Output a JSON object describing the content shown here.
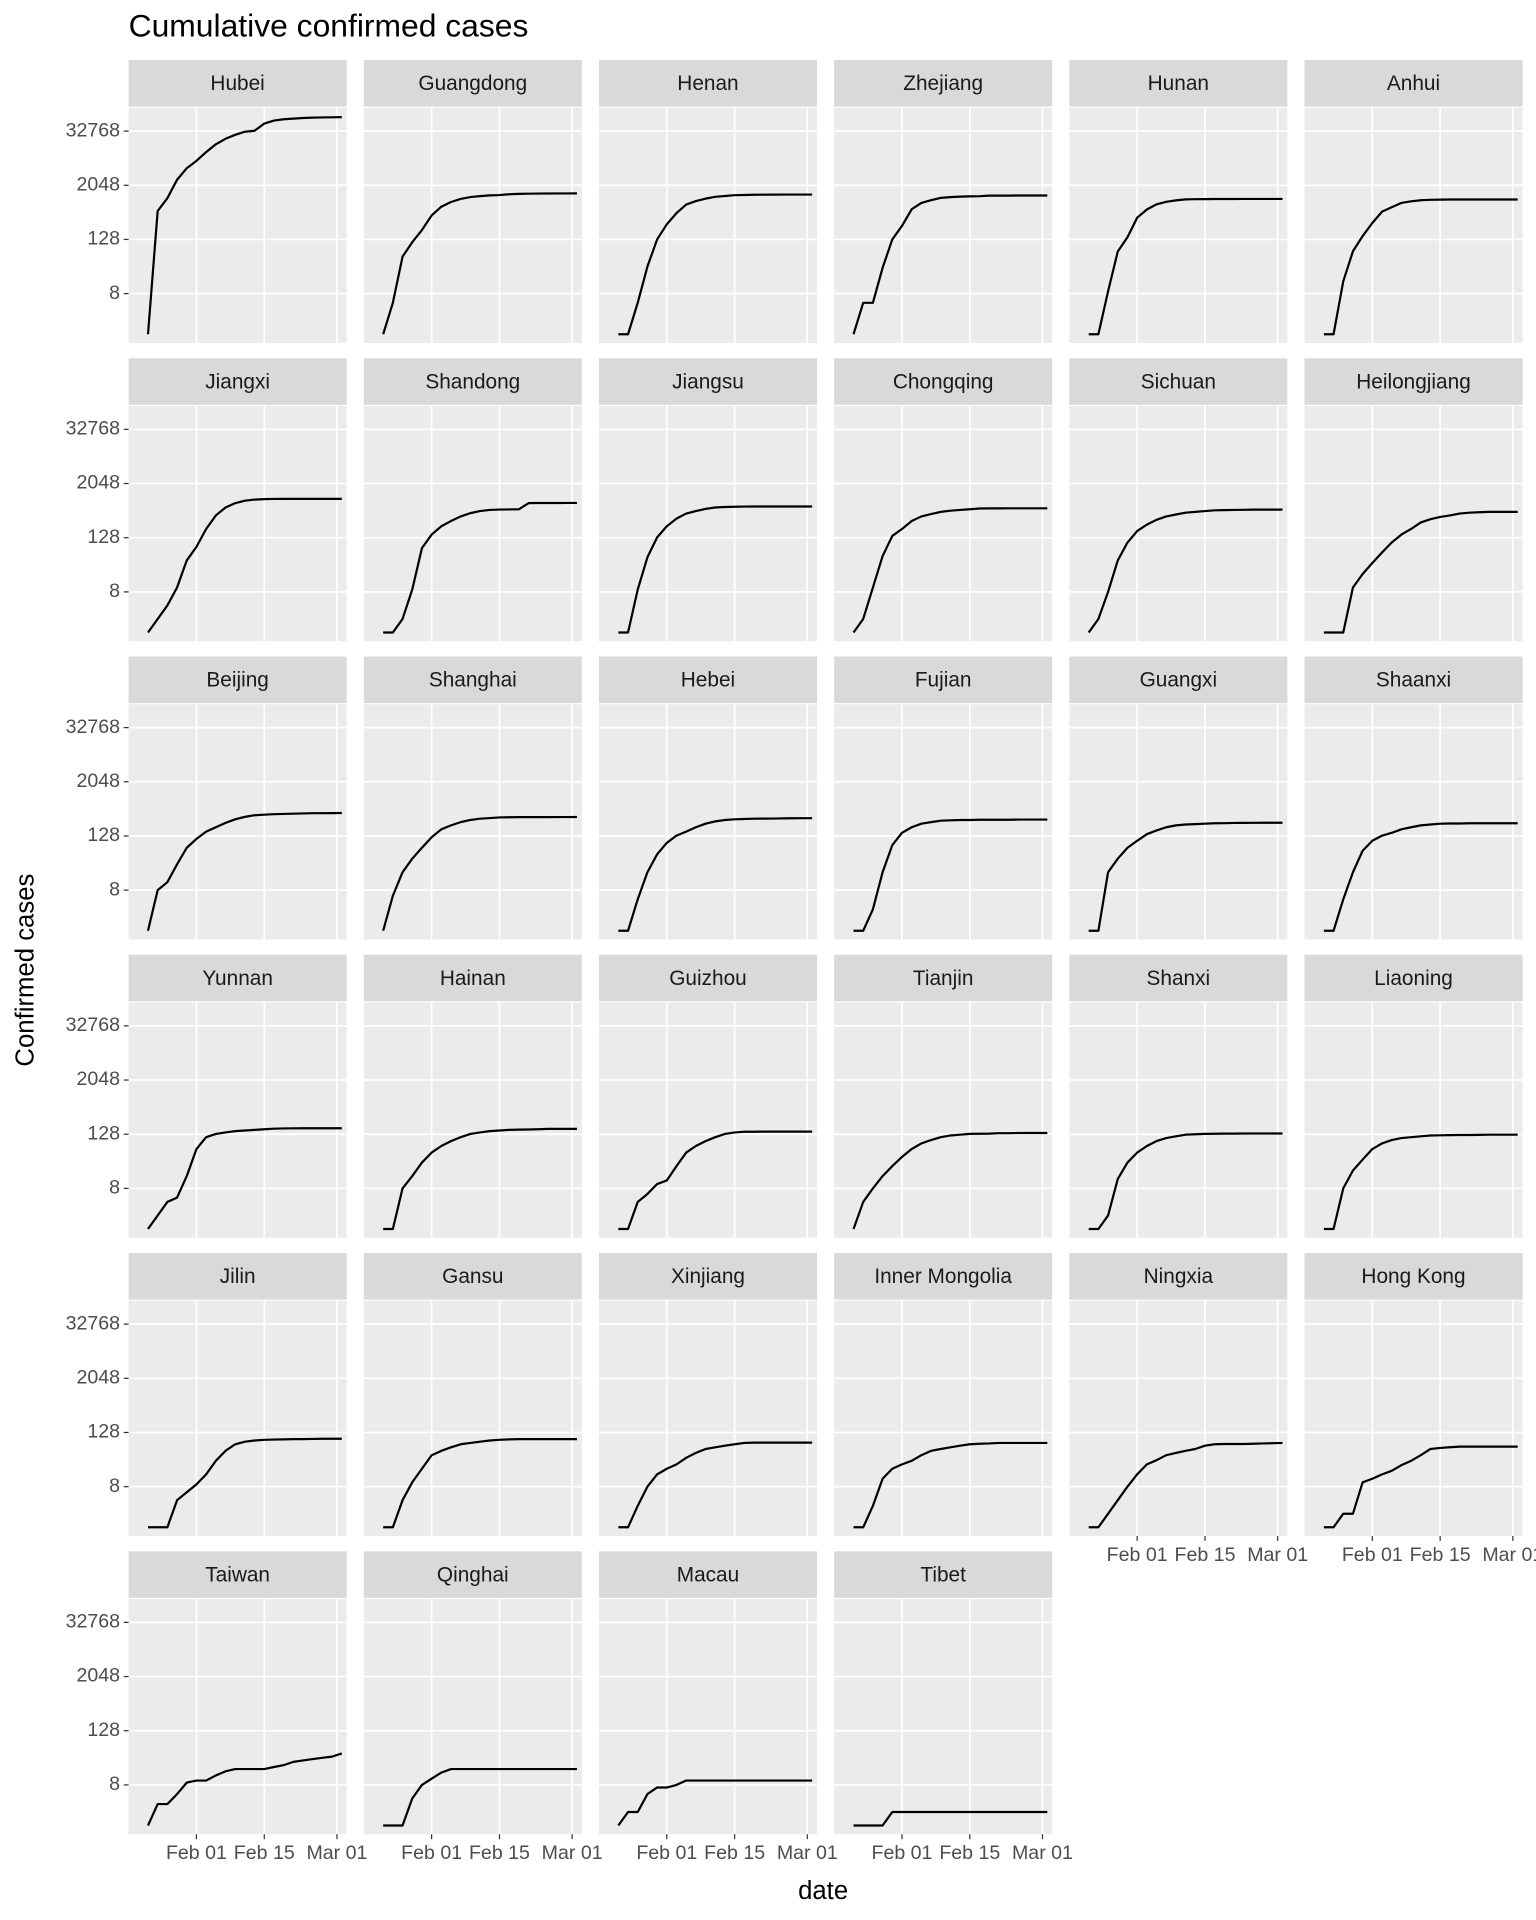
{
  "chart_data": {
    "type": "line",
    "title": "Cumulative confirmed cases",
    "x_label": "date",
    "y_label": "Confirmed cases",
    "y_scale": "log2",
    "grid": true,
    "color": "#000000",
    "xlim": [
      18,
      63
    ],
    "xticks": [
      {
        "value": 32,
        "label": "Feb 01"
      },
      {
        "value": 46,
        "label": "Feb 15"
      },
      {
        "value": 61,
        "label": "Mar 01"
      }
    ],
    "ylim": [
      0.64,
      108000
    ],
    "yticks": [
      8,
      128,
      2048,
      32768
    ],
    "x": [
      22,
      24,
      26,
      28,
      30,
      32,
      34,
      36,
      38,
      40,
      42,
      44,
      46,
      48,
      50,
      52,
      54,
      56,
      58,
      60,
      62
    ],
    "series": [
      {
        "name": "Hubei",
        "values": [
          1,
          549,
          1058,
          2714,
          4903,
          7153,
          11177,
          16678,
          22112,
          27100,
          31728,
          33366,
          48206,
          56249,
          59989,
          62031,
          64084,
          65187,
          65914,
          66337,
          66907
        ]
      },
      {
        "name": "Guangdong",
        "values": [
          1,
          5,
          53,
          111,
          207,
          436,
          683,
          870,
          1018,
          1120,
          1177,
          1219,
          1241,
          1294,
          1316,
          1332,
          1339,
          1345,
          1347,
          1349,
          1350
        ]
      },
      {
        "name": "Henan",
        "values": [
          1,
          1,
          5,
          32,
          128,
          278,
          493,
          764,
          914,
          1033,
          1135,
          1184,
          1231,
          1246,
          1262,
          1265,
          1270,
          1271,
          1272,
          1272,
          1272
        ]
      },
      {
        "name": "Zhejiang",
        "values": [
          1,
          5,
          5,
          30,
          128,
          256,
          600,
          829,
          954,
          1075,
          1117,
          1145,
          1162,
          1171,
          1205,
          1205,
          1206,
          1213,
          1215,
          1215,
          1215
        ]
      },
      {
        "name": "Hunan",
        "values": [
          1,
          1,
          9,
          69,
          143,
          389,
          593,
          773,
          879,
          946,
          996,
          1004,
          1006,
          1016,
          1016,
          1016,
          1017,
          1018,
          1018,
          1018,
          1018
        ]
      },
      {
        "name": "Anhui",
        "values": [
          1,
          1,
          15,
          70,
          152,
          297,
          530,
          665,
          830,
          900,
          950,
          973,
          982,
          987,
          989,
          989,
          990,
          990,
          990,
          990,
          990
        ]
      },
      {
        "name": "Jiangxi",
        "values": [
          1,
          2,
          4,
          10,
          40,
          80,
          200,
          400,
          600,
          750,
          850,
          900,
          920,
          930,
          934,
          935,
          935,
          935,
          935,
          935,
          935
        ]
      },
      {
        "name": "Shandong",
        "values": [
          1,
          1,
          2,
          9,
          75,
          150,
          230,
          300,
          380,
          450,
          500,
          530,
          540,
          544,
          548,
          750,
          755,
          756,
          756,
          758,
          758
        ]
      },
      {
        "name": "Jiangsu",
        "values": [
          1,
          1,
          9,
          47,
          130,
          230,
          340,
          440,
          500,
          560,
          600,
          615,
          625,
          630,
          631,
          631,
          631,
          631,
          631,
          631,
          631
        ]
      },
      {
        "name": "Chongqing",
        "values": [
          1,
          2,
          10,
          50,
          140,
          200,
          300,
          380,
          430,
          480,
          510,
          530,
          550,
          570,
          573,
          575,
          576,
          576,
          576,
          576,
          576
        ]
      },
      {
        "name": "Sichuan",
        "values": [
          1,
          2,
          8,
          40,
          100,
          180,
          250,
          320,
          380,
          420,
          460,
          480,
          500,
          520,
          525,
          530,
          534,
          538,
          538,
          539,
          539
        ]
      },
      {
        "name": "Heilongjiang",
        "values": [
          1,
          1,
          1,
          10,
          20,
          35,
          60,
          100,
          150,
          200,
          280,
          330,
          370,
          400,
          440,
          460,
          470,
          480,
          480,
          480,
          480
        ]
      },
      {
        "name": "Beijing",
        "values": [
          1,
          8,
          12,
          30,
          70,
          110,
          160,
          200,
          250,
          300,
          340,
          370,
          380,
          390,
          395,
          400,
          405,
          410,
          410,
          411,
          414
        ]
      },
      {
        "name": "Shanghai",
        "values": [
          1,
          6,
          20,
          40,
          70,
          120,
          180,
          220,
          260,
          290,
          310,
          320,
          330,
          333,
          335,
          335,
          335,
          336,
          337,
          337,
          338
        ]
      },
      {
        "name": "Hebei",
        "values": [
          1,
          1,
          5,
          20,
          50,
          90,
          130,
          160,
          200,
          240,
          270,
          290,
          300,
          305,
          310,
          311,
          312,
          315,
          317,
          318,
          318
        ]
      },
      {
        "name": "Fujian",
        "values": [
          1,
          1,
          3,
          20,
          80,
          150,
          200,
          240,
          260,
          280,
          285,
          290,
          290,
          293,
          293,
          294,
          294,
          296,
          296,
          296,
          296
        ]
      },
      {
        "name": "Guangxi",
        "values": [
          1,
          1,
          20,
          40,
          70,
          100,
          140,
          170,
          200,
          220,
          230,
          235,
          240,
          245,
          246,
          249,
          250,
          251,
          252,
          252,
          252
        ]
      },
      {
        "name": "Shaanxi",
        "values": [
          1,
          1,
          5,
          20,
          60,
          100,
          130,
          150,
          180,
          200,
          220,
          230,
          240,
          242,
          242,
          245,
          245,
          245,
          245,
          245,
          245
        ]
      },
      {
        "name": "Yunnan",
        "values": [
          1,
          2,
          4,
          5,
          15,
          60,
          110,
          130,
          140,
          150,
          155,
          160,
          165,
          170,
          172,
          173,
          174,
          174,
          174,
          174,
          174
        ]
      },
      {
        "name": "Hainan",
        "values": [
          1,
          1,
          8,
          15,
          30,
          50,
          70,
          90,
          110,
          130,
          140,
          150,
          155,
          160,
          162,
          163,
          165,
          168,
          168,
          168,
          168
        ]
      },
      {
        "name": "Guizhou",
        "values": [
          1,
          1,
          4,
          6,
          10,
          12,
          25,
          50,
          70,
          90,
          110,
          130,
          140,
          145,
          145,
          146,
          146,
          146,
          146,
          146,
          146
        ]
      },
      {
        "name": "Tianjin",
        "values": [
          1,
          4,
          8,
          15,
          25,
          40,
          60,
          80,
          95,
          110,
          120,
          125,
          130,
          131,
          132,
          135,
          135,
          136,
          136,
          136,
          136
        ]
      },
      {
        "name": "Shanxi",
        "values": [
          1,
          1,
          2,
          13,
          30,
          50,
          70,
          90,
          105,
          115,
          125,
          128,
          130,
          131,
          132,
          132,
          133,
          133,
          133,
          133,
          133
        ]
      },
      {
        "name": "Liaoning",
        "values": [
          1,
          1,
          8,
          20,
          35,
          60,
          80,
          95,
          105,
          110,
          115,
          120,
          121,
          122,
          123,
          123,
          124,
          125,
          125,
          125,
          125
        ]
      },
      {
        "name": "Jilin",
        "values": [
          1,
          1,
          1,
          4,
          6,
          9,
          15,
          30,
          50,
          70,
          80,
          85,
          88,
          89,
          90,
          91,
          91,
          92,
          93,
          93,
          93
        ]
      },
      {
        "name": "Gansu",
        "values": [
          1,
          1,
          4,
          10,
          20,
          40,
          50,
          60,
          70,
          75,
          80,
          85,
          88,
          90,
          91,
          91,
          91,
          91,
          91,
          91,
          91
        ]
      },
      {
        "name": "Xinjiang",
        "values": [
          1,
          1,
          3,
          8,
          15,
          20,
          25,
          35,
          45,
          55,
          60,
          65,
          70,
          75,
          76,
          76,
          76,
          76,
          76,
          76,
          76
        ]
      },
      {
        "name": "Inner Mongolia",
        "values": [
          1,
          1,
          3,
          12,
          20,
          25,
          30,
          40,
          50,
          55,
          60,
          65,
          70,
          72,
          73,
          75,
          75,
          75,
          75,
          75,
          75
        ]
      },
      {
        "name": "Ningxia",
        "values": [
          1,
          1,
          2,
          4,
          8,
          15,
          25,
          31,
          40,
          45,
          50,
          55,
          65,
          70,
          71,
          71,
          71,
          72,
          73,
          74,
          75
        ]
      },
      {
        "name": "Hong Kong",
        "values": [
          1,
          1,
          2,
          2,
          10,
          12,
          15,
          18,
          24,
          30,
          40,
          55,
          58,
          60,
          62,
          62,
          62,
          62,
          62,
          62,
          62
        ]
      },
      {
        "name": "Taiwan",
        "values": [
          1,
          3,
          3,
          5,
          9,
          10,
          10,
          13,
          16,
          18,
          18,
          18,
          18,
          20,
          22,
          26,
          28,
          30,
          32,
          34,
          40
        ]
      },
      {
        "name": "Qinghai",
        "values": [
          1,
          1,
          1,
          4,
          8,
          11,
          15,
          18,
          18,
          18,
          18,
          18,
          18,
          18,
          18,
          18,
          18,
          18,
          18,
          18,
          18
        ]
      },
      {
        "name": "Macau",
        "values": [
          1,
          2,
          2,
          5,
          7,
          7,
          8,
          10,
          10,
          10,
          10,
          10,
          10,
          10,
          10,
          10,
          10,
          10,
          10,
          10,
          10
        ]
      },
      {
        "name": "Tibet",
        "values": [
          1,
          1,
          1,
          1,
          2,
          2,
          2,
          2,
          2,
          2,
          2,
          2,
          2,
          2,
          2,
          2,
          2,
          2,
          2,
          2,
          2
        ]
      }
    ]
  }
}
